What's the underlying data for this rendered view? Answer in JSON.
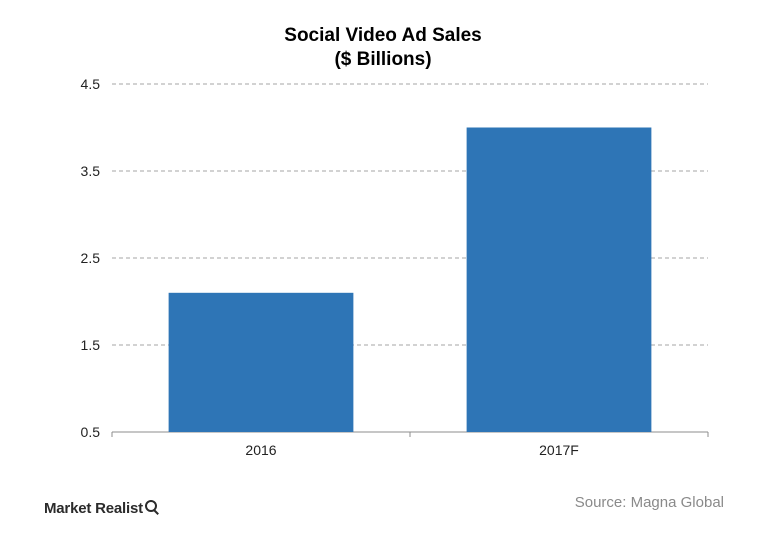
{
  "chart_data": {
    "type": "bar",
    "title": "Social Video Ad Sales",
    "subtitle": "($ Billions)",
    "categories": [
      "2016",
      "2017F"
    ],
    "values": [
      2.1,
      4.0
    ],
    "yticks": [
      "0.5",
      "1.5",
      "2.5",
      "3.5",
      "4.5"
    ],
    "ylim": [
      0.5,
      4.5
    ],
    "grid": true,
    "bar_color": "#2e75b6",
    "grid_color": "#a6a6a6"
  },
  "footer": {
    "source": "Source: Magna Global",
    "logo": "Market Realist",
    "logo_icon": "magnifier-icon"
  }
}
